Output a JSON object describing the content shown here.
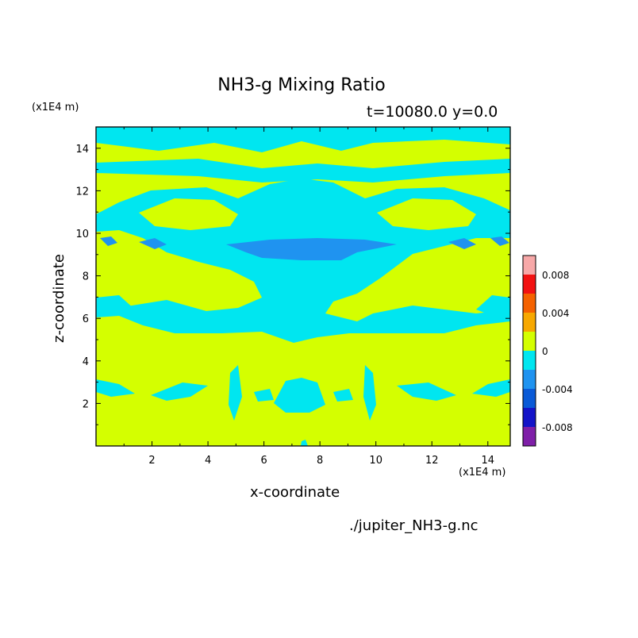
{
  "chart_data": {
    "type": "heatmap",
    "title": "NH3-g Mixing Ratio",
    "subtitle": "t=10080.0 y=0.0",
    "xlabel": "x-coordinate",
    "ylabel": "z-coordinate",
    "x_units": "(x1E4 m)",
    "z_units": "(x1E4 m)",
    "xlim": [
      0,
      14.8
    ],
    "ylim": [
      0,
      15
    ],
    "x_ticks": [
      2,
      4,
      6,
      8,
      10,
      12,
      14
    ],
    "y_ticks": [
      2,
      4,
      6,
      8,
      10,
      12,
      14
    ],
    "colorbar": {
      "levels": [
        -0.01,
        -0.008,
        -0.006,
        -0.004,
        -0.002,
        0,
        0.002,
        0.004,
        0.006,
        0.008,
        0.01
      ],
      "colors": [
        "#7f1fa8",
        "#1414c8",
        "#0a5ad7",
        "#1f93f0",
        "#00e6f0",
        "#d4ff00",
        "#f7a800",
        "#f56200",
        "#f21212",
        "#f7a8a8"
      ],
      "tick_labels": [
        "-0.008",
        "-0.004",
        "0",
        "0.004",
        "0.008"
      ],
      "tick_values": [
        -0.008,
        -0.004,
        0,
        0.004,
        0.008
      ]
    },
    "background_color": "#d4ff00",
    "field_colors": {
      "zero": "#d4ff00",
      "slightly_negative": "#00e6f0",
      "negative": "#1f93f0"
    },
    "source": "./jupiter_NH3-g.nc"
  }
}
